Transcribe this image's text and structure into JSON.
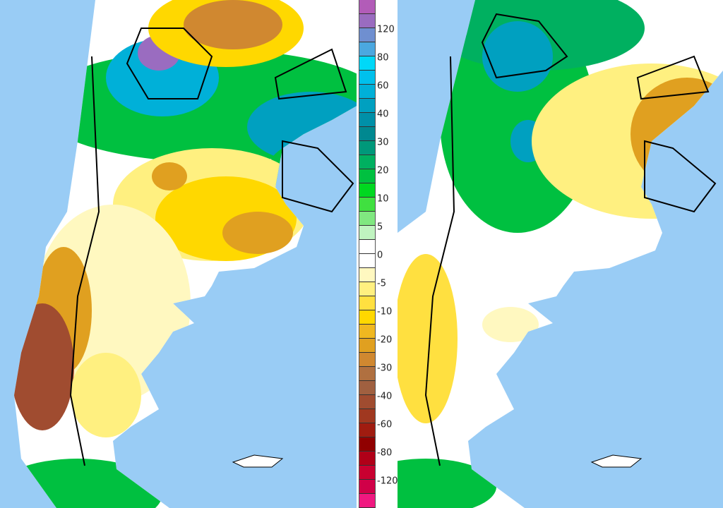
{
  "legend": {
    "colors": [
      "#b25cb8",
      "#9a6cc0",
      "#6f8fd0",
      "#4ba8e0",
      "#00d8f8",
      "#00c0ec",
      "#00b0d8",
      "#00a0c0",
      "#0090a8",
      "#008890",
      "#00987a",
      "#00b060",
      "#00c040",
      "#00d820",
      "#40e040",
      "#80e880",
      "#c0f4c0",
      "#ffffff",
      "#ffffff",
      "#fff8c0",
      "#fff080",
      "#ffe040",
      "#ffd800",
      "#f0b820",
      "#e0a020",
      "#d08830",
      "#b07040",
      "#a06040",
      "#a04c30",
      "#a03820",
      "#a01c10",
      "#900000",
      "#b00018",
      "#c80030",
      "#d00048",
      "#f01880"
    ],
    "labels": [
      "120",
      "80",
      "60",
      "40",
      "30",
      "20",
      "10",
      "5",
      "0",
      "-5",
      "-10",
      "-20",
      "-30",
      "-40",
      "-60",
      "-80",
      "-120"
    ]
  },
  "colors": {
    "ocean": "#99ccf5",
    "land_neutral": "#ffffff"
  }
}
